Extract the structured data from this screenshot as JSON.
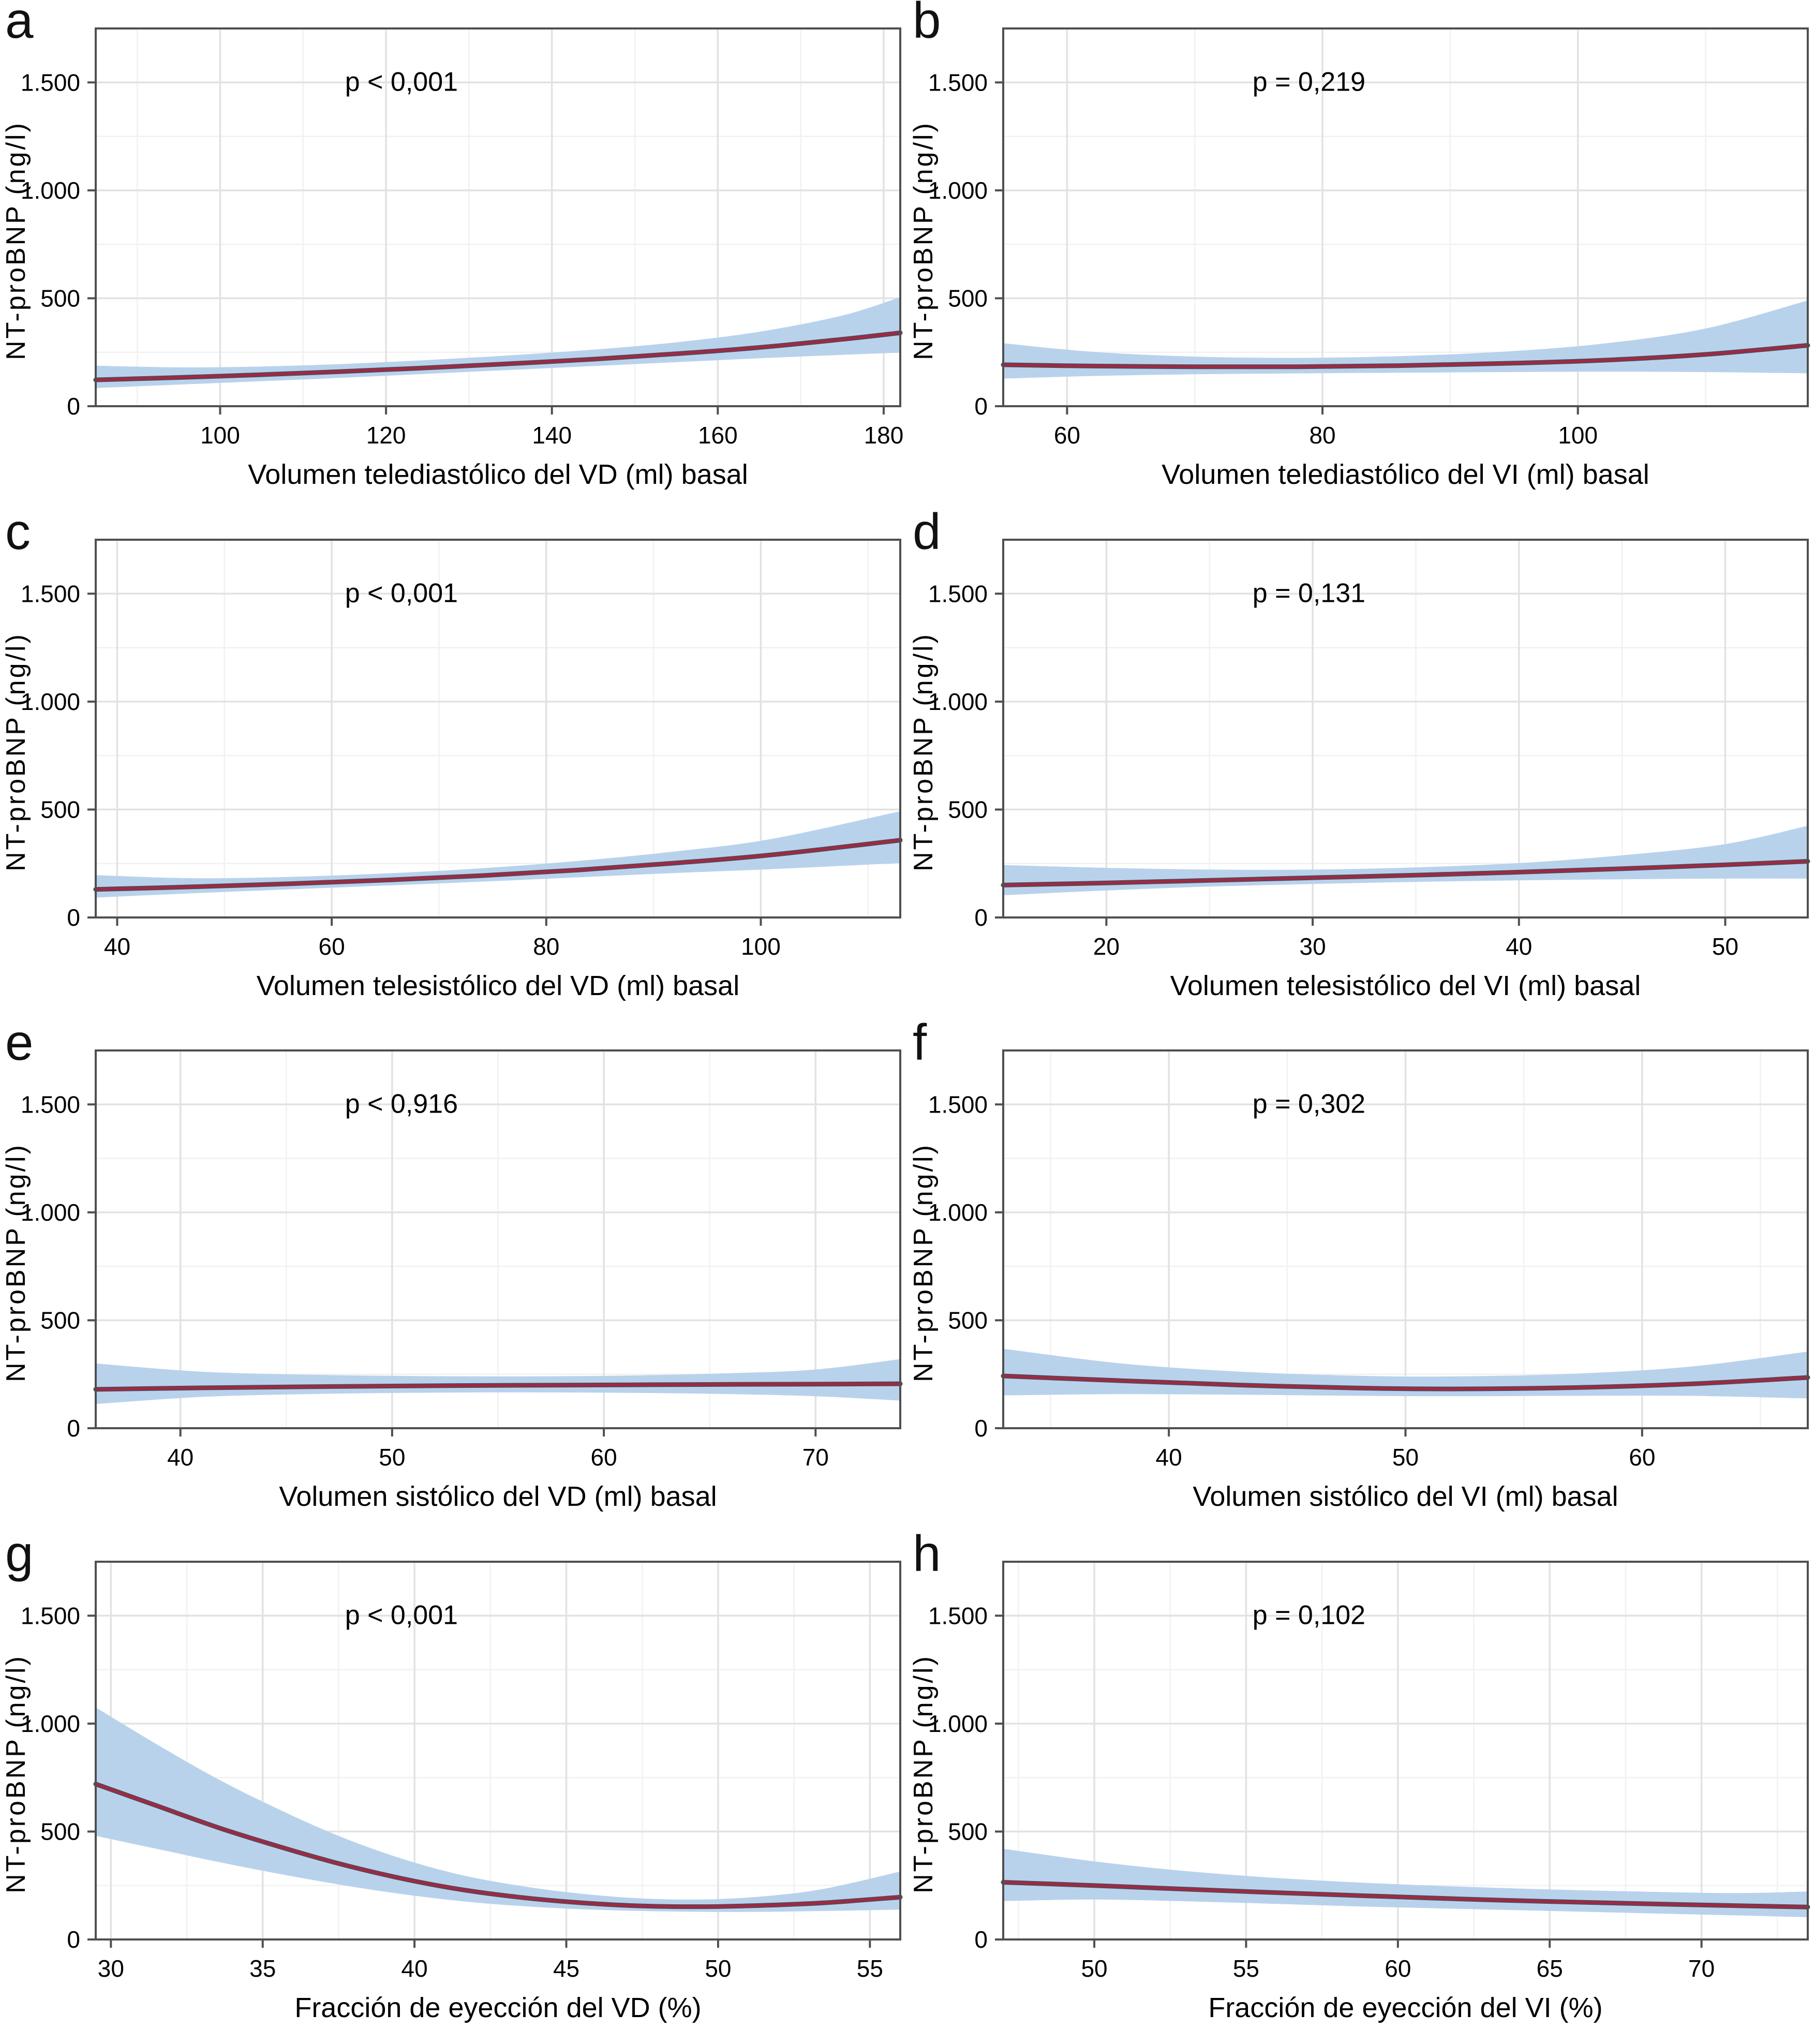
{
  "style": {
    "band_color": "#b9d2ec",
    "line_color": "#9c2b42",
    "line_underlay_color": "#4a4a5e",
    "grid_major_color": "#e2e2e2",
    "grid_minor_color": "#f1f1f1",
    "border_color": "#4f4f4f",
    "tick_color": "#4f4f4f",
    "text_color": "#000000",
    "background": "#ffffff"
  },
  "axes": {
    "ylabel": "NT-proBNP (ng/l)",
    "ylim": [
      0,
      1750
    ],
    "yticks": [
      0,
      500,
      1000,
      1500
    ],
    "ytick_labels": [
      "0",
      "500",
      "1.000",
      "1.500"
    ]
  },
  "chart_data": [
    {
      "panel": "a",
      "type": "line",
      "p_label": "p < 0,001",
      "xlabel": "Volumen telediastólico del VD (ml) basal",
      "xlim": [
        85,
        182
      ],
      "xticks": [
        100,
        120,
        140,
        160,
        180
      ],
      "xtick_labels": [
        "100",
        "120",
        "140",
        "160",
        "180"
      ],
      "series": {
        "x": [
          85,
          95,
          105,
          115,
          125,
          135,
          145,
          155,
          165,
          175,
          182
        ],
        "mean": [
          122,
          133,
          146,
          161,
          178,
          197,
          218,
          243,
          272,
          310,
          340
        ],
        "lower": [
          84,
          100,
          116,
          132,
          150,
          168,
          186,
          204,
          222,
          238,
          248
        ],
        "upper": [
          188,
          180,
          184,
          196,
          214,
          236,
          262,
          296,
          345,
          420,
          505
        ]
      }
    },
    {
      "panel": "b",
      "type": "line",
      "p_label": "p = 0,219",
      "xlabel": "Volumen telediastólico del VI (ml) basal",
      "xlim": [
        55,
        118
      ],
      "xticks": [
        60,
        80,
        100
      ],
      "xtick_labels": [
        "60",
        "80",
        "100"
      ],
      "series": {
        "x": [
          55,
          62,
          70,
          78,
          86,
          94,
          102,
          110,
          118
        ],
        "mean": [
          192,
          186,
          183,
          183,
          188,
          198,
          213,
          240,
          282
        ],
        "lower": [
          128,
          140,
          148,
          152,
          155,
          158,
          160,
          158,
          152
        ],
        "upper": [
          292,
          252,
          230,
          224,
          232,
          252,
          290,
          360,
          490
        ]
      }
    },
    {
      "panel": "c",
      "type": "line",
      "p_label": "p < 0,001",
      "xlabel": "Volumen telesistólico del VD (ml) basal",
      "xlim": [
        38,
        113
      ],
      "xticks": [
        40,
        60,
        80,
        100
      ],
      "xtick_labels": [
        "40",
        "60",
        "80",
        "100"
      ],
      "series": {
        "x": [
          38,
          47,
          56,
          65,
          74,
          83,
          92,
          101,
          113
        ],
        "mean": [
          130,
          142,
          156,
          173,
          194,
          220,
          252,
          290,
          358
        ],
        "lower": [
          92,
          112,
          130,
          148,
          166,
          186,
          206,
          224,
          252
        ],
        "upper": [
          196,
          182,
          188,
          204,
          228,
          262,
          306,
          364,
          492
        ]
      }
    },
    {
      "panel": "d",
      "type": "line",
      "p_label": "p = 0,131",
      "xlabel": "Volumen telesistólico del VI (ml) basal",
      "xlim": [
        15,
        54
      ],
      "xticks": [
        20,
        30,
        40,
        50
      ],
      "xtick_labels": [
        "20",
        "30",
        "40",
        "50"
      ],
      "series": {
        "x": [
          15,
          20,
          25,
          30,
          35,
          40,
          45,
          50,
          54
        ],
        "mean": [
          150,
          160,
          172,
          184,
          196,
          210,
          226,
          244,
          260
        ],
        "lower": [
          103,
          125,
          143,
          155,
          165,
          172,
          177,
          180,
          180
        ],
        "upper": [
          243,
          230,
          222,
          222,
          232,
          252,
          288,
          340,
          425
        ]
      }
    },
    {
      "panel": "e",
      "type": "line",
      "p_label": "p < 0,916",
      "xlabel": "Volumen sistólico del VD (ml) basal",
      "xlim": [
        36,
        74
      ],
      "xticks": [
        40,
        50,
        60,
        70
      ],
      "xtick_labels": [
        "40",
        "50",
        "60",
        "70"
      ],
      "series": {
        "x": [
          36,
          41,
          46,
          51,
          56,
          61,
          66,
          70,
          74
        ],
        "mean": [
          180,
          187,
          192,
          196,
          199,
          201,
          203,
          204,
          206
        ],
        "lower": [
          112,
          145,
          158,
          164,
          166,
          164,
          158,
          148,
          128
        ],
        "upper": [
          300,
          262,
          248,
          242,
          240,
          244,
          255,
          272,
          320
        ]
      }
    },
    {
      "panel": "f",
      "type": "line",
      "p_label": "p = 0,302",
      "xlabel": "Volumen sistólico del VI (ml) basal",
      "xlim": [
        33,
        67
      ],
      "xticks": [
        40,
        50,
        60
      ],
      "xtick_labels": [
        "40",
        "50",
        "60"
      ],
      "series": {
        "x": [
          33,
          38,
          43,
          48,
          52,
          57,
          62,
          67
        ],
        "mean": [
          242,
          220,
          200,
          186,
          182,
          188,
          205,
          235
        ],
        "lower": [
          152,
          158,
          155,
          150,
          148,
          150,
          150,
          138
        ],
        "upper": [
          368,
          300,
          262,
          243,
          240,
          252,
          285,
          355
        ]
      }
    },
    {
      "panel": "g",
      "type": "line",
      "p_label": "p < 0,001",
      "xlabel": "Fracción de eyección del VD (%)",
      "xlim": [
        29.5,
        56
      ],
      "xticks": [
        30,
        35,
        40,
        45,
        50,
        55
      ],
      "xtick_labels": [
        "30",
        "35",
        "40",
        "45",
        "50",
        "55"
      ],
      "series": {
        "x": [
          29.5,
          31.5,
          33.5,
          35.5,
          37.5,
          39.5,
          41.5,
          43.5,
          45.5,
          47.5,
          49.5,
          51.5,
          53.5,
          56
        ],
        "mean": [
          720,
          620,
          520,
          432,
          352,
          285,
          232,
          195,
          170,
          155,
          152,
          158,
          170,
          196
        ],
        "lower": [
          480,
          420,
          360,
          305,
          255,
          212,
          178,
          155,
          140,
          132,
          128,
          128,
          132,
          138
        ],
        "upper": [
          1075,
          905,
          745,
          605,
          480,
          378,
          300,
          248,
          212,
          190,
          185,
          200,
          235,
          315
        ]
      }
    },
    {
      "panel": "h",
      "type": "line",
      "p_label": "p = 0,102",
      "xlabel": "Fracción de eyección del VI (%)",
      "xlim": [
        47,
        73.5
      ],
      "xticks": [
        50,
        55,
        60,
        65,
        70
      ],
      "xtick_labels": [
        "50",
        "55",
        "60",
        "65",
        "70"
      ],
      "series": {
        "x": [
          47,
          50,
          53,
          56,
          59,
          62,
          65,
          68,
          71,
          73.5
        ],
        "mean": [
          265,
          250,
          233,
          217,
          202,
          188,
          176,
          166,
          157,
          150
        ],
        "lower": [
          178,
          185,
          177,
          165,
          152,
          142,
          132,
          122,
          112,
          103
        ],
        "upper": [
          420,
          362,
          317,
          285,
          262,
          245,
          232,
          222,
          215,
          222
        ]
      }
    }
  ]
}
